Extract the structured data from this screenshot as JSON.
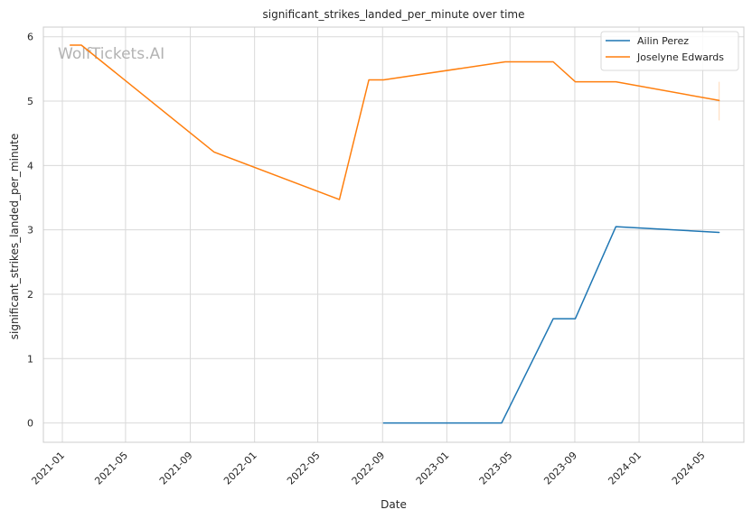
{
  "chart_data": {
    "type": "line",
    "title": "significant_strikes_landed_per_minute over time",
    "xlabel": "Date",
    "ylabel": "significant_strikes_landed_per_minute",
    "watermark": "WolfTickets.AI",
    "x_type": "date",
    "xlim": [
      "2020-11-26",
      "2024-07-18"
    ],
    "ylim": [
      -0.3,
      6.15
    ],
    "x_ticks": [
      "2021-01",
      "2021-05",
      "2021-09",
      "2022-01",
      "2022-05",
      "2022-09",
      "2023-01",
      "2023-05",
      "2023-09",
      "2024-01",
      "2024-05"
    ],
    "y_ticks": [
      0,
      1,
      2,
      3,
      4,
      5,
      6
    ],
    "grid": true,
    "legend_position": "top-right",
    "series": [
      {
        "name": "Ailin Perez",
        "color": "#1f77b4",
        "points": [
          {
            "x": "2022-09-03",
            "y": 0.0
          },
          {
            "x": "2023-04-15",
            "y": 0.0
          },
          {
            "x": "2023-07-22",
            "y": 1.62
          },
          {
            "x": "2023-09-02",
            "y": 1.62
          },
          {
            "x": "2023-11-18",
            "y": 3.05
          },
          {
            "x": "2024-06-01",
            "y": 2.96
          }
        ]
      },
      {
        "name": "Joselyne Edwards",
        "color": "#ff7f0e",
        "points": [
          {
            "x": "2021-01-16",
            "y": 5.87
          },
          {
            "x": "2021-02-06",
            "y": 5.87
          },
          {
            "x": "2021-10-16",
            "y": 4.21
          },
          {
            "x": "2022-06-11",
            "y": 3.47
          },
          {
            "x": "2022-08-06",
            "y": 5.33
          },
          {
            "x": "2022-09-03",
            "y": 5.33
          },
          {
            "x": "2023-04-22",
            "y": 5.61
          },
          {
            "x": "2023-07-22",
            "y": 5.61
          },
          {
            "x": "2023-09-02",
            "y": 5.3
          },
          {
            "x": "2023-11-18",
            "y": 5.3
          },
          {
            "x": "2024-06-01",
            "y": 5.01
          }
        ],
        "error_bar": {
          "x": "2024-06-01",
          "low": 4.7,
          "high": 5.3
        }
      }
    ]
  }
}
